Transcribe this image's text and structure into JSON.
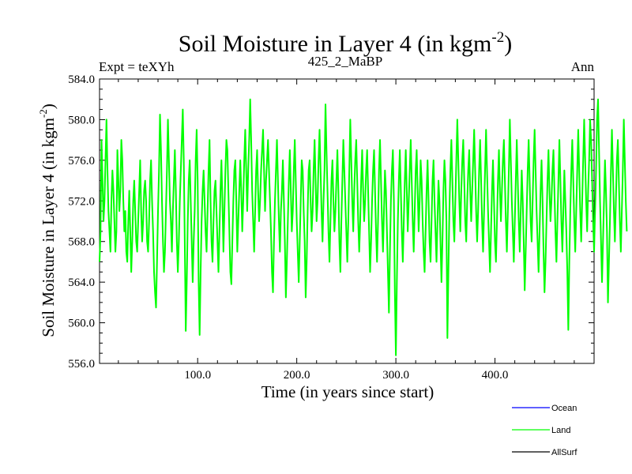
{
  "chart_data": {
    "type": "line",
    "title": "Soil Moisture in Layer 4 (in kgm",
    "title_sup": "-2",
    "title_end": ")",
    "subtitle_left": "Expt = teXYh",
    "subtitle_center": "425_2_MaBP",
    "subtitle_right": "Ann",
    "xlabel": "Time (in years since start)",
    "ylabel": "Soil Moisture in Layer 4 (in kgm",
    "ylabel_sup": "-2",
    "ylabel_end": ")",
    "xlim": [
      1,
      500
    ],
    "ylim": [
      556,
      584
    ],
    "xticks": [
      100,
      200,
      300,
      400
    ],
    "xtick_labels": [
      "100.0",
      "200.0",
      "300.0",
      "400.0"
    ],
    "yticks": [
      556,
      560,
      564,
      568,
      572,
      576,
      580,
      584
    ],
    "ytick_labels": [
      "556.0",
      "560.0",
      "564.0",
      "568.0",
      "572.0",
      "576.0",
      "580.0",
      "584.0"
    ],
    "legend": [
      {
        "name": "Ocean",
        "color": "#0000ff"
      },
      {
        "name": "Land",
        "color": "#00ff00"
      },
      {
        "name": "AllSurf",
        "color": "#000000"
      }
    ],
    "series": [
      {
        "name": "Land",
        "color": "#00ff00",
        "x_start": 1,
        "x_step": 1,
        "values": [
          566,
          569,
          578,
          574,
          570,
          572,
          576,
          580,
          575,
          571,
          569,
          567,
          572,
          575,
          573,
          570,
          567,
          569,
          577,
          574,
          571,
          573,
          578,
          576,
          572,
          569,
          571,
          567,
          566,
          570,
          573,
          569,
          565,
          568,
          572,
          574,
          571,
          568,
          567,
          570,
          573,
          576,
          571,
          568,
          570,
          573,
          574,
          572,
          568,
          567,
          570,
          574,
          576,
          572,
          569,
          565,
          563,
          561.5,
          566,
          571,
          575,
          580.5,
          577,
          572,
          568,
          565,
          567,
          571,
          575,
          580,
          576,
          572,
          570,
          567,
          571,
          574,
          577,
          573,
          568,
          565,
          568,
          572,
          575,
          578,
          581,
          576,
          568,
          559.2,
          564,
          570,
          574,
          576,
          572,
          568,
          564,
          568,
          571,
          576,
          579,
          574,
          564,
          558.8,
          565,
          570,
          573,
          575,
          572,
          569,
          567,
          571,
          575,
          578,
          572,
          568,
          566,
          570,
          573,
          574,
          571,
          568,
          565,
          569,
          573,
          576,
          572,
          567,
          571,
          575,
          578,
          577,
          573,
          569,
          565,
          563.8,
          568,
          572,
          575,
          576,
          572,
          567,
          570,
          573,
          576,
          573,
          569,
          572,
          576,
          579,
          575,
          571,
          575,
          578,
          582,
          578,
          573,
          570,
          567,
          571,
          575,
          577,
          573,
          570,
          572,
          575,
          577,
          579,
          575,
          571,
          574,
          576,
          578,
          575,
          572,
          569,
          565,
          563,
          568,
          572,
          575,
          578,
          574,
          570,
          567,
          571,
          573,
          576,
          572,
          568,
          562.5,
          566,
          570,
          574,
          577,
          573,
          569,
          571,
          575,
          578,
          574,
          570,
          567,
          564,
          568,
          572,
          576,
          575,
          571,
          568,
          562.5,
          566,
          571,
          575,
          576,
          572,
          569,
          571,
          575,
          578,
          574,
          570,
          572,
          576,
          579,
          575,
          571,
          568,
          572,
          575,
          581.5,
          577,
          573,
          569,
          566,
          570,
          574,
          576,
          572,
          569,
          571,
          574,
          577,
          573,
          568,
          565,
          570,
          574,
          578,
          575,
          572,
          569,
          566,
          570,
          575,
          580,
          576,
          572,
          569,
          573,
          576,
          578,
          574,
          570,
          567,
          570,
          574,
          577,
          573,
          570,
          572,
          575,
          577,
          573,
          569,
          565,
          568,
          572,
          575,
          577,
          573,
          569,
          566,
          570,
          575,
          578,
          574,
          570,
          567,
          571,
          575,
          573,
          569,
          565,
          561,
          567,
          572,
          575,
          577,
          572,
          563,
          556.8,
          564,
          570,
          574,
          577,
          573,
          569,
          566,
          570,
          574,
          577,
          573,
          569,
          572,
          575,
          578,
          574,
          570,
          567,
          571,
          575,
          577,
          573,
          569,
          572,
          576,
          574,
          570,
          567,
          565,
          569,
          573,
          576,
          572,
          568,
          566,
          570,
          574,
          576,
          572,
          569,
          566,
          570,
          574,
          572,
          568,
          564,
          568,
          573,
          576,
          574,
          570,
          558.5,
          565,
          571,
          575,
          578,
          574,
          570,
          568,
          572,
          576,
          580,
          576,
          572,
          569,
          573,
          576,
          578,
          574,
          570,
          568,
          572,
          575,
          577,
          573,
          570,
          573,
          576,
          579,
          575,
          571,
          568,
          571,
          575,
          578,
          574,
          570,
          567,
          571,
          575,
          579,
          575,
          571,
          568,
          565,
          569,
          573,
          576,
          572,
          568,
          566,
          570,
          574,
          577,
          573,
          570,
          573,
          576,
          578,
          574,
          570,
          567,
          571,
          575,
          580,
          576,
          572,
          569,
          566,
          570,
          574,
          578,
          574,
          570,
          567,
          571,
          575,
          572,
          568,
          563.2,
          567,
          571,
          575,
          578,
          574,
          570,
          568,
          572,
          576,
          579,
          575,
          571,
          568,
          565,
          569,
          573,
          576,
          572,
          567,
          563,
          566,
          570,
          574,
          577,
          573,
          570,
          572,
          575,
          577,
          573,
          569,
          566,
          570,
          574,
          578,
          574,
          570,
          567,
          571,
          575,
          572,
          569,
          565,
          559.3,
          566,
          571,
          575,
          578,
          574,
          570,
          567,
          571,
          575,
          579,
          575,
          571,
          568,
          572,
          576,
          580,
          576,
          572,
          569,
          573,
          576,
          580,
          578,
          574,
          570,
          567,
          571,
          575,
          580,
          582,
          577,
          572,
          568,
          564,
          568,
          572,
          576,
          573,
          569,
          562,
          566,
          570,
          575,
          579,
          575,
          571,
          568,
          572,
          576,
          578,
          574,
          570,
          567,
          571,
          575,
          580,
          576,
          572,
          569
        ]
      }
    ]
  }
}
